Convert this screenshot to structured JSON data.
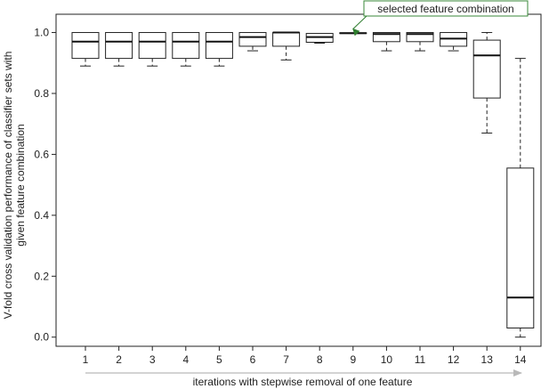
{
  "chart_data": {
    "type": "box",
    "title": "",
    "xlabel": "iterations with stepwise removal of one feature",
    "ylabel_lines": [
      "V-fold cross validation performance of classifier sets with",
      "given feature combination"
    ],
    "ylim": [
      -0.03,
      1.06
    ],
    "yticks": [
      "0.0",
      "0.2",
      "0.4",
      "0.6",
      "0.8",
      "1.0"
    ],
    "categories": [
      "1",
      "2",
      "3",
      "4",
      "5",
      "6",
      "7",
      "8",
      "9",
      "10",
      "11",
      "12",
      "13",
      "14"
    ],
    "boxes": [
      {
        "category": "1",
        "whisker_low": 0.89,
        "q1": 0.915,
        "median": 0.97,
        "q3": 1.0,
        "whisker_high": 1.0
      },
      {
        "category": "2",
        "whisker_low": 0.89,
        "q1": 0.915,
        "median": 0.97,
        "q3": 1.0,
        "whisker_high": 1.0
      },
      {
        "category": "3",
        "whisker_low": 0.89,
        "q1": 0.915,
        "median": 0.97,
        "q3": 1.0,
        "whisker_high": 1.0
      },
      {
        "category": "4",
        "whisker_low": 0.89,
        "q1": 0.915,
        "median": 0.97,
        "q3": 1.0,
        "whisker_high": 1.0
      },
      {
        "category": "5",
        "whisker_low": 0.89,
        "q1": 0.915,
        "median": 0.97,
        "q3": 1.0,
        "whisker_high": 1.0
      },
      {
        "category": "6",
        "whisker_low": 0.94,
        "q1": 0.955,
        "median": 0.985,
        "q3": 1.0,
        "whisker_high": 1.0
      },
      {
        "category": "7",
        "whisker_low": 0.91,
        "q1": 0.955,
        "median": 1.0,
        "q3": 1.0,
        "whisker_high": 1.0
      },
      {
        "category": "8",
        "whisker_low": 0.965,
        "q1": 0.968,
        "median": 0.985,
        "q3": 0.997,
        "whisker_high": 0.997
      },
      {
        "category": "9",
        "whisker_low": 0.997,
        "q1": 0.997,
        "median": 0.998,
        "q3": 0.999,
        "whisker_high": 0.999
      },
      {
        "category": "10",
        "whisker_low": 0.94,
        "q1": 0.97,
        "median": 0.995,
        "q3": 1.0,
        "whisker_high": 1.0
      },
      {
        "category": "11",
        "whisker_low": 0.94,
        "q1": 0.97,
        "median": 0.995,
        "q3": 1.0,
        "whisker_high": 1.0
      },
      {
        "category": "12",
        "whisker_low": 0.94,
        "q1": 0.955,
        "median": 0.98,
        "q3": 1.0,
        "whisker_high": 1.0
      },
      {
        "category": "13",
        "whisker_low": 0.67,
        "q1": 0.785,
        "median": 0.925,
        "q3": 0.975,
        "whisker_high": 1.0
      },
      {
        "category": "14",
        "whisker_low": 0.0,
        "q1": 0.03,
        "median": 0.13,
        "q3": 0.555,
        "whisker_high": 0.915
      }
    ],
    "annotation": {
      "text": "selected feature combination",
      "category": "9",
      "value": 1.0
    },
    "arrow_under_xaxis": true,
    "colors": {
      "box_stroke": "#222222",
      "annotation_border": "#3a8a3a",
      "arrow": "#2f7d2f",
      "x_arrow": "#b9b9b9"
    }
  }
}
